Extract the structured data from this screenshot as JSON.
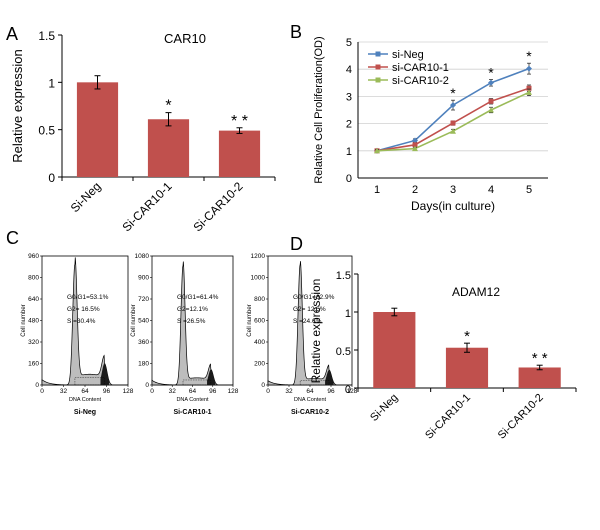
{
  "panel_labels": [
    "A",
    "B",
    "C",
    "D"
  ],
  "colors": {
    "bar": "#c0504d",
    "si_neg_line": "#4f81bd",
    "car10_1_line": "#c0504d",
    "car10_2_line": "#9bbb59",
    "histogram_fill": "#bdbdbd",
    "histogram_dark": "#1a1a1a"
  },
  "chart_data": [
    {
      "id": "A",
      "type": "bar",
      "title": "CAR10",
      "categories": [
        "Si-Neg",
        "Si-CAR10-1",
        "Si-CAR10-2"
      ],
      "values": [
        1.0,
        0.61,
        0.49
      ],
      "errors": [
        0.07,
        0.07,
        0.03
      ],
      "annotations": [
        "",
        "*",
        "* *"
      ],
      "xlabel": "",
      "ylabel": "Relative expression",
      "ylim": [
        0,
        1.5
      ],
      "yticks": [
        0,
        0.5,
        1,
        1.5
      ],
      "ytick_labels": [
        "0",
        "0.5",
        "1",
        "1.5"
      ],
      "grid": false
    },
    {
      "id": "B",
      "type": "line",
      "title": "",
      "x": [
        1,
        2,
        3,
        4,
        5
      ],
      "xtick_labels": [
        "1",
        "2",
        "3",
        "4",
        "5"
      ],
      "series": [
        {
          "name": "si-Neg",
          "values": [
            1.0,
            1.38,
            2.68,
            3.5,
            4.02
          ],
          "errors": [
            0.05,
            0.06,
            0.18,
            0.12,
            0.2
          ]
        },
        {
          "name": "si-CAR10-1",
          "values": [
            1.0,
            1.22,
            2.02,
            2.82,
            3.3
          ],
          "errors": [
            0.04,
            0.05,
            0.08,
            0.1,
            0.12
          ]
        },
        {
          "name": "si-CAR10-2",
          "values": [
            1.0,
            1.08,
            1.72,
            2.5,
            3.15
          ],
          "errors": [
            0.04,
            0.05,
            0.07,
            0.1,
            0.12
          ]
        }
      ],
      "annotations": [
        {
          "x": 3,
          "text": "*"
        },
        {
          "x": 4,
          "text": "*"
        },
        {
          "x": 5,
          "text": "*"
        }
      ],
      "xlabel": "Days(in culture)",
      "ylabel": "Relative Cell Proliferation(OD)",
      "ylim": [
        0,
        5
      ],
      "yticks": [
        0,
        1,
        2,
        3,
        4,
        5
      ],
      "ytick_labels": [
        "0",
        "1",
        "2",
        "3",
        "4",
        "5"
      ],
      "grid": true,
      "legend_position": "top-left"
    },
    {
      "id": "C",
      "type": "histogram",
      "xlabel": "DNA Content",
      "ylabel": "Cell number",
      "xticks": [
        0,
        32,
        64,
        96,
        128
      ],
      "xtick_labels": [
        "0",
        "32",
        "64",
        "96",
        "128"
      ],
      "panels": [
        {
          "name": "Si-Neg",
          "ylim": [
            0,
            960
          ],
          "yticks": [
            0,
            160,
            320,
            480,
            640,
            800,
            960
          ],
          "ytick_labels": [
            "0",
            "160",
            "320",
            "480",
            "640",
            "800",
            "960"
          ],
          "stats": [
            "G0/G1=53.1%",
            "G2= 16.5%",
            "S =30.4%"
          ],
          "g1_peak": 900,
          "g2_peak": 160,
          "s_level": 80
        },
        {
          "name": "Si-CAR10-1",
          "ylim": [
            0,
            1080
          ],
          "yticks": [
            0,
            180,
            360,
            540,
            720,
            900,
            1080
          ],
          "ytick_labels": [
            "0",
            "180",
            "360",
            "540",
            "720",
            "900",
            "1080"
          ],
          "stats": [
            "G0/G1=61.4%",
            "G2=12.1%",
            "S =26.5%"
          ],
          "g1_peak": 1000,
          "g2_peak": 130,
          "s_level": 60
        },
        {
          "name": "Si-CAR10-2",
          "ylim": [
            0,
            1200
          ],
          "yticks": [
            0,
            200,
            400,
            600,
            800,
            1000,
            1200
          ],
          "ytick_labels": [
            "0",
            "200",
            "400",
            "600",
            "800",
            "1000",
            "1200"
          ],
          "stats": [
            "G0/G1=62.9%",
            "G2= 12.5%",
            "S =24.6%"
          ],
          "g1_peak": 1120,
          "g2_peak": 140,
          "s_level": 60
        }
      ]
    },
    {
      "id": "D",
      "type": "bar",
      "title": "ADAM12",
      "categories": [
        "Si-Neg",
        "Si-CAR10-1",
        "Si-CAR10-2"
      ],
      "values": [
        1.0,
        0.53,
        0.27
      ],
      "errors": [
        0.05,
        0.06,
        0.03
      ],
      "annotations": [
        "",
        "*",
        "* *"
      ],
      "xlabel": "",
      "ylabel": "Relative expression",
      "ylim": [
        0,
        1.5
      ],
      "yticks": [
        0,
        0.5,
        1,
        1.5
      ],
      "ytick_labels": [
        "0",
        "0.5",
        "1",
        "1.5"
      ],
      "grid": false
    }
  ]
}
